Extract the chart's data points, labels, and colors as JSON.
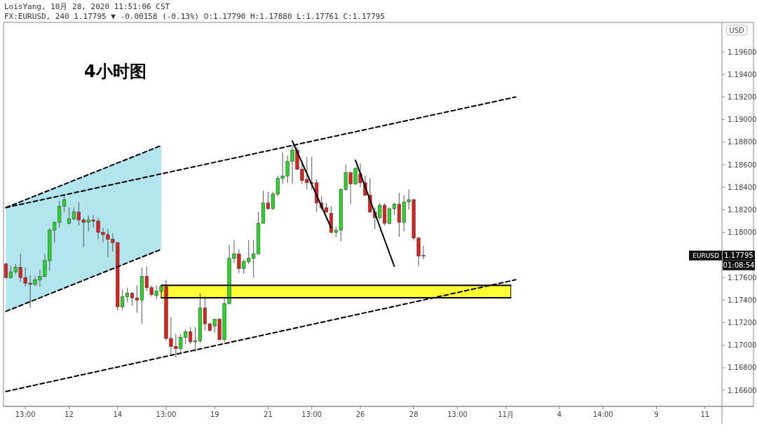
{
  "chart_data": {
    "type": "candlestick",
    "title": "LoisYang, 10月 28, 2020 11:51:06 CST",
    "subtitle": "FX:EURUSD, 240 1.17795 ▼ -0.00158 (-0.13%) O:1.17790 H:1.17880 L:1.17761 C:1.17795",
    "ylabel": "USD",
    "annotations": [
      "4小时图",
      "EURUSD",
      "1.17795",
      "01:08:54"
    ],
    "categories": [
      null,
      null,
      null,
      null,
      "13:00",
      null,
      null,
      null,
      null,
      null,
      null,
      null,
      null,
      "12",
      null,
      null,
      null,
      null,
      null,
      null,
      null,
      null,
      null,
      "14",
      null,
      null,
      null,
      null,
      null,
      null,
      null,
      null,
      null,
      "13:00",
      null,
      null,
      null,
      null,
      null,
      null,
      null,
      null,
      null,
      "19",
      null,
      null,
      null,
      null,
      null,
      null,
      null,
      null,
      null,
      null,
      "21",
      null,
      null,
      null,
      null,
      null,
      null,
      null,
      null,
      "13:00",
      null,
      null,
      null,
      null,
      null,
      null,
      null,
      null,
      null,
      "26",
      null,
      null,
      null,
      null,
      null,
      null,
      null,
      null,
      null,
      null,
      "28",
      null,
      null,
      null,
      null,
      null,
      null,
      null,
      null,
      "13:00",
      null,
      null,
      null,
      null,
      null,
      null,
      null,
      null,
      null,
      "11月",
      null,
      null,
      null,
      null,
      null,
      null,
      null,
      null,
      null,
      null,
      "4",
      null,
      null,
      null,
      null,
      null,
      null,
      null,
      null,
      "14:00",
      null,
      null,
      null,
      null,
      null,
      null,
      null,
      null,
      null,
      null,
      "9",
      null,
      null,
      null,
      null,
      null,
      null,
      null,
      null,
      null,
      "11",
      null,
      null,
      null
    ],
    "ohlc": [
      [
        1.1772,
        1.1773,
        1.1759,
        1.176
      ],
      [
        1.176,
        1.177,
        1.1759,
        1.1765
      ],
      [
        1.1765,
        1.1772,
        1.1763,
        1.1769
      ],
      [
        1.1769,
        1.1781,
        1.1756,
        1.176
      ],
      [
        1.176,
        1.1769,
        1.1752,
        1.1755
      ],
      [
        1.1755,
        1.1762,
        1.1733,
        1.1754
      ],
      [
        1.1754,
        1.1761,
        1.1752,
        1.1758
      ],
      [
        1.1758,
        1.1767,
        1.1752,
        1.1761
      ],
      [
        1.1761,
        1.1781,
        1.176,
        1.1775
      ],
      [
        1.1775,
        1.1804,
        1.1766,
        1.1802
      ],
      [
        1.1802,
        1.181,
        1.1791,
        1.1809
      ],
      [
        1.1809,
        1.1828,
        1.1804,
        1.1823
      ],
      [
        1.1823,
        1.1833,
        1.1818,
        1.1829
      ],
      [
        1.1808,
        1.1822,
        1.1807,
        1.1812
      ],
      [
        1.1812,
        1.1822,
        1.1811,
        1.1818
      ],
      [
        1.1818,
        1.1827,
        1.1806,
        1.1811
      ],
      [
        1.1811,
        1.1813,
        1.1787,
        1.1809
      ],
      [
        1.1809,
        1.1815,
        1.1801,
        1.1811
      ],
      [
        1.1811,
        1.1815,
        1.1804,
        1.181
      ],
      [
        1.181,
        1.1813,
        1.1794,
        1.18
      ],
      [
        1.18,
        1.1804,
        1.1791,
        1.1798
      ],
      [
        1.1798,
        1.1803,
        1.1778,
        1.1794
      ],
      [
        1.1794,
        1.1799,
        1.1783,
        1.1791
      ],
      [
        1.1791,
        1.1791,
        1.1731,
        1.1734
      ],
      [
        1.1734,
        1.1749,
        1.1731,
        1.1743
      ],
      [
        1.1743,
        1.1751,
        1.1738,
        1.1746
      ],
      [
        1.1746,
        1.1747,
        1.1735,
        1.1742
      ],
      [
        1.1742,
        1.1753,
        1.1729,
        1.174
      ],
      [
        1.174,
        1.1769,
        1.1719,
        1.1761
      ],
      [
        1.1761,
        1.177,
        1.1748,
        1.1751
      ],
      [
        1.1751,
        1.1753,
        1.1743,
        1.1745
      ],
      [
        1.1744,
        1.1753,
        1.1741,
        1.1748
      ],
      [
        1.1748,
        1.1753,
        1.1746,
        1.1752
      ],
      [
        1.1752,
        1.1758,
        1.1704,
        1.1706
      ],
      [
        1.1706,
        1.1725,
        1.1692,
        1.1699
      ],
      [
        1.1699,
        1.171,
        1.1689,
        1.1697
      ],
      [
        1.1697,
        1.171,
        1.1693,
        1.1707
      ],
      [
        1.1707,
        1.1714,
        1.1701,
        1.1712
      ],
      [
        1.1712,
        1.1716,
        1.1701,
        1.1703
      ],
      [
        1.1703,
        1.1716,
        1.1694,
        1.1704
      ],
      [
        1.1704,
        1.1746,
        1.1702,
        1.1733
      ],
      [
        1.1733,
        1.1743,
        1.1713,
        1.1719
      ],
      [
        1.1719,
        1.172,
        1.1712,
        1.1713
      ],
      [
        1.1717,
        1.1723,
        1.1711,
        1.1723
      ],
      [
        1.1723,
        1.1724,
        1.1704,
        1.1705
      ],
      [
        1.1705,
        1.1742,
        1.1703,
        1.1737
      ],
      [
        1.1737,
        1.1789,
        1.1736,
        1.1777
      ],
      [
        1.1777,
        1.1793,
        1.1773,
        1.1781
      ],
      [
        1.1781,
        1.1785,
        1.1764,
        1.1768
      ],
      [
        1.1768,
        1.1776,
        1.1763,
        1.1774
      ],
      [
        1.1774,
        1.1793,
        1.1772,
        1.1777
      ],
      [
        1.1777,
        1.1793,
        1.176,
        1.1781
      ],
      [
        1.1781,
        1.1818,
        1.1781,
        1.1808
      ],
      [
        1.1808,
        1.1837,
        1.1808,
        1.1826
      ],
      [
        1.1826,
        1.1836,
        1.182,
        1.1821
      ],
      [
        1.1821,
        1.1836,
        1.182,
        1.1834
      ],
      [
        1.1834,
        1.185,
        1.1832,
        1.1848
      ],
      [
        1.1848,
        1.1871,
        1.1843,
        1.185
      ],
      [
        1.185,
        1.1868,
        1.1844,
        1.1863
      ],
      [
        1.1863,
        1.1877,
        1.1843,
        1.1873
      ],
      [
        1.1873,
        1.1876,
        1.1855,
        1.1856
      ],
      [
        1.1856,
        1.1863,
        1.1843,
        1.1846
      ],
      [
        1.1847,
        1.1867,
        1.1838,
        1.1844
      ],
      [
        1.1844,
        1.1867,
        1.1838,
        1.1844
      ],
      [
        1.1844,
        1.1847,
        1.1818,
        1.1826
      ],
      [
        1.1826,
        1.1832,
        1.182,
        1.1822
      ],
      [
        1.1822,
        1.1826,
        1.1817,
        1.1818
      ],
      [
        1.1817,
        1.1823,
        1.1799,
        1.18
      ],
      [
        1.18,
        1.1805,
        1.1796,
        1.1802
      ],
      [
        1.1802,
        1.1839,
        1.1792,
        1.1838
      ],
      [
        1.1838,
        1.186,
        1.1837,
        1.1853
      ],
      [
        1.1853,
        1.1854,
        1.1825,
        1.1843
      ],
      [
        1.1843,
        1.1857,
        1.1842,
        1.1857
      ],
      [
        1.1852,
        1.1861,
        1.184,
        1.1844
      ],
      [
        1.1844,
        1.185,
        1.1832,
        1.1833
      ],
      [
        1.1833,
        1.1848,
        1.1817,
        1.1818
      ],
      [
        1.1818,
        1.1822,
        1.1803,
        1.1813
      ],
      [
        1.1813,
        1.1826,
        1.1811,
        1.1824
      ],
      [
        1.1824,
        1.1826,
        1.1806,
        1.1808
      ],
      [
        1.1808,
        1.1822,
        1.1807,
        1.1821
      ],
      [
        1.1821,
        1.1826,
        1.1815,
        1.1825
      ],
      [
        1.1825,
        1.1835,
        1.1796,
        1.1809
      ],
      [
        1.1809,
        1.1833,
        1.1801,
        1.1827
      ],
      [
        1.1827,
        1.1838,
        1.182,
        1.1829
      ],
      [
        1.1829,
        1.183,
        1.1793,
        1.1795
      ],
      [
        1.1795,
        1.1796,
        1.177,
        1.1779
      ],
      [
        1.1779,
        1.1788,
        1.17761,
        1.17795
      ],
      null,
      null,
      null,
      null,
      null,
      null,
      null,
      null,
      null,
      null,
      null,
      null,
      null,
      null,
      null,
      null,
      null,
      null,
      null,
      null,
      null,
      null,
      null,
      null,
      null,
      null,
      null,
      null,
      null,
      null,
      null,
      null,
      null,
      null,
      null,
      null,
      null,
      null,
      null,
      null,
      null,
      null,
      null,
      null,
      null,
      null,
      null,
      null,
      null,
      null,
      null,
      null,
      null,
      null,
      null,
      null,
      null,
      null,
      null,
      null,
      null
    ],
    "colors": [
      "#e0201c",
      "#26d926",
      "#26d926",
      "#e0201c",
      "#e0201c",
      "#e0201c",
      "#26d926",
      "#26d926",
      "#26d926",
      "#26d926",
      "#26d926",
      "#26d926",
      "#26d926",
      "#26d926",
      "#26d926",
      "#e0201c",
      "#e0201c",
      "#26d926",
      "#e0201c",
      "#e0201c",
      "#e0201c",
      "#e0201c",
      "#e0201c",
      "#e0201c",
      "#26d926",
      "#26d926",
      "#e0201c",
      "#e0201c",
      "#26d926",
      "#e0201c",
      "#e0201c",
      "#26d926",
      "#26d926",
      "#e0201c",
      "#e0201c",
      "#e0201c",
      "#26d926",
      "#26d926",
      "#e0201c",
      "#26d926",
      "#26d926",
      "#e0201c",
      "#e0201c",
      "#26d926",
      "#e0201c",
      "#26d926",
      "#26d926",
      "#26d926",
      "#e0201c",
      "#26d926",
      "#26d926",
      "#26d926",
      "#26d926",
      "#26d926",
      "#e0201c",
      "#26d926",
      "#26d926",
      "#26d926",
      "#26d926",
      "#26d926",
      "#e0201c",
      "#e0201c",
      "#e0201c",
      "#e0201c",
      "#e0201c",
      "#e0201c",
      "#e0201c",
      "#e0201c",
      "#26d926",
      "#26d926",
      "#26d926",
      "#e0201c",
      "#26d926",
      "#e0201c",
      "#e0201c",
      "#e0201c",
      "#e0201c",
      "#26d926",
      "#e0201c",
      "#26d926",
      "#26d926",
      "#e0201c",
      "#26d926",
      "#26d926",
      "#e0201c",
      "#e0201c",
      "#26d926",
      null,
      null,
      null,
      null,
      null,
      null,
      null,
      null,
      null,
      null,
      null,
      null,
      null,
      null,
      null,
      null,
      null,
      null,
      null,
      null,
      null,
      null,
      null,
      null,
      null,
      null,
      null,
      null,
      null,
      null,
      null,
      null,
      null,
      null,
      null,
      null,
      null,
      null,
      null,
      null,
      null,
      null,
      null,
      null,
      null,
      null,
      null,
      null,
      null,
      null,
      null,
      null,
      null,
      null,
      null,
      null,
      null,
      null,
      null,
      null,
      null
    ],
    "series": [
      {
        "type": "line",
        "color": "#000000",
        "line_style": "dashed",
        "values": [
          1.1822,
          null,
          null,
          null,
          null,
          null,
          null,
          null,
          null,
          null,
          null,
          null,
          null,
          null,
          null,
          null,
          null,
          null,
          null,
          null,
          null,
          null,
          null,
          null,
          null,
          null,
          null,
          null,
          null,
          null,
          null,
          null,
          1.1877,
          null,
          null,
          null,
          null,
          null,
          null,
          null,
          null,
          null,
          null,
          null,
          null,
          null,
          null,
          null,
          null,
          null,
          null,
          null,
          null,
          null,
          null,
          null,
          null,
          null,
          null,
          null,
          null,
          null,
          null,
          null,
          null,
          null,
          null,
          null,
          null,
          null,
          null,
          null,
          null,
          null,
          null,
          null,
          null,
          null,
          null,
          null,
          null,
          null,
          null,
          null,
          null,
          null,
          null,
          null,
          null,
          null,
          null,
          null,
          null,
          null,
          null,
          null,
          null,
          null,
          null,
          null,
          null,
          null,
          null,
          null,
          null,
          null,
          null,
          null,
          null,
          null,
          null,
          null,
          null,
          null,
          null,
          null,
          null,
          null,
          null,
          null,
          null,
          null,
          null,
          null,
          null,
          null,
          null,
          null,
          null,
          null,
          null,
          null,
          null,
          null,
          null,
          null,
          null,
          null,
          null,
          null,
          null,
          null,
          null,
          null,
          null,
          null,
          null,
          null
        ]
      },
      {
        "type": "line",
        "color": "#000000",
        "line_style": "dashed",
        "values": [
          1.173,
          null,
          null,
          null,
          null,
          null,
          null,
          null,
          null,
          null,
          null,
          null,
          null,
          null,
          null,
          null,
          null,
          null,
          null,
          null,
          null,
          null,
          null,
          null,
          null,
          null,
          null,
          null,
          null,
          null,
          null,
          null,
          1.1785,
          null,
          null,
          null,
          null,
          null,
          null,
          null,
          null,
          null,
          null,
          null,
          null,
          null,
          null,
          null,
          null,
          null,
          null,
          null,
          null,
          null,
          null,
          null,
          null,
          null,
          null,
          null,
          null,
          null,
          null,
          null,
          null,
          null,
          null,
          null,
          null,
          null,
          null,
          null,
          null,
          null,
          null,
          null,
          null,
          null,
          null,
          null,
          null,
          null,
          null,
          null,
          null,
          null,
          null,
          null,
          null,
          null,
          null,
          null,
          null,
          null,
          null,
          null,
          null,
          null,
          null,
          null,
          null,
          null,
          null,
          null,
          null,
          null,
          null,
          null,
          null,
          null,
          null,
          null,
          null,
          null,
          null,
          null,
          null,
          null,
          null,
          null,
          null,
          null,
          null,
          null,
          null,
          null,
          null,
          null,
          null,
          null,
          null,
          null,
          null,
          null,
          null,
          null,
          null,
          null,
          null,
          null,
          null,
          null,
          null,
          null,
          null,
          null,
          null,
          null
        ]
      },
      {
        "type": "line",
        "color": "#000000",
        "line_style": "dashed",
        "values": [
          1.1822,
          null,
          null,
          null,
          null,
          null,
          null,
          null,
          null,
          null,
          null,
          null,
          null,
          null,
          null,
          null,
          null,
          null,
          null,
          null,
          null,
          null,
          null,
          null,
          null,
          null,
          null,
          null,
          null,
          null,
          null,
          null,
          null,
          null,
          null,
          null,
          null,
          null,
          null,
          null,
          null,
          null,
          null,
          null,
          null,
          null,
          null,
          null,
          null,
          null,
          null,
          null,
          null,
          null,
          null,
          null,
          null,
          null,
          null,
          null,
          null,
          null,
          null,
          null,
          null,
          null,
          null,
          null,
          null,
          null,
          null,
          null,
          null,
          null,
          null,
          null,
          null,
          null,
          null,
          null,
          null,
          null,
          null,
          null,
          null,
          null,
          null,
          null,
          null,
          null,
          null,
          null,
          null,
          null,
          null,
          null,
          null,
          null,
          null,
          null,
          null,
          null,
          null,
          null,
          null,
          1.192,
          null,
          null,
          null,
          null,
          null,
          null,
          null,
          null,
          null,
          null,
          null,
          null,
          null,
          null,
          null,
          null,
          null,
          null,
          null,
          null,
          null,
          null,
          null,
          null,
          null,
          null,
          null,
          null,
          null,
          null,
          null,
          null,
          null,
          null,
          null,
          null,
          null,
          null,
          null,
          null,
          null,
          null
        ]
      },
      {
        "type": "line",
        "color": "#000000",
        "line_style": "dashed",
        "values": [
          1.1659,
          null,
          null,
          null,
          null,
          null,
          null,
          null,
          null,
          null,
          null,
          null,
          null,
          null,
          null,
          null,
          null,
          null,
          null,
          null,
          null,
          null,
          null,
          null,
          null,
          null,
          null,
          null,
          null,
          null,
          null,
          null,
          null,
          null,
          null,
          null,
          null,
          null,
          null,
          null,
          null,
          null,
          null,
          null,
          null,
          null,
          null,
          null,
          null,
          null,
          null,
          null,
          null,
          null,
          null,
          null,
          null,
          null,
          null,
          null,
          null,
          null,
          null,
          null,
          null,
          null,
          null,
          null,
          null,
          null,
          null,
          null,
          null,
          null,
          null,
          null,
          null,
          null,
          null,
          null,
          null,
          null,
          null,
          null,
          null,
          null,
          null,
          null,
          null,
          null,
          null,
          null,
          null,
          null,
          null,
          null,
          null,
          null,
          null,
          null,
          null,
          null,
          null,
          null,
          null,
          1.1758,
          null,
          null,
          null,
          null,
          null,
          null,
          null,
          null,
          null,
          null,
          null,
          null,
          null,
          null,
          null,
          null,
          null,
          null,
          null,
          null,
          null,
          null,
          null,
          null,
          null,
          null,
          null,
          null,
          null,
          null,
          null,
          null,
          null,
          null,
          null,
          null,
          null,
          null,
          null,
          null,
          null,
          null
        ]
      },
      {
        "type": "line",
        "color": "#000000",
        "line_style": "solid",
        "values": [
          null,
          null,
          null,
          null,
          null,
          null,
          null,
          null,
          null,
          null,
          null,
          null,
          null,
          null,
          null,
          null,
          null,
          null,
          null,
          null,
          null,
          null,
          null,
          null,
          null,
          null,
          null,
          null,
          null,
          null,
          null,
          null,
          null,
          null,
          null,
          null,
          null,
          null,
          null,
          null,
          null,
          null,
          null,
          null,
          null,
          null,
          null,
          null,
          null,
          null,
          null,
          null,
          null,
          null,
          null,
          null,
          null,
          null,
          null,
          1.1881,
          null,
          null,
          null,
          null,
          null,
          null,
          null,
          1.1804,
          null,
          null,
          null,
          null,
          null,
          null,
          null,
          null,
          null,
          null,
          null,
          null,
          null,
          null,
          null,
          null,
          null,
          null,
          null,
          null,
          null,
          null,
          null,
          null,
          null,
          null,
          null,
          null,
          null,
          null,
          null,
          null,
          null,
          null,
          null,
          null,
          null,
          null,
          null,
          null,
          null,
          null,
          null,
          null,
          null,
          null,
          null,
          null,
          null,
          null,
          null,
          null,
          null,
          null,
          null,
          null,
          null,
          null,
          null,
          null,
          null,
          null,
          null,
          null,
          null,
          null,
          null,
          null,
          null,
          null,
          null,
          null,
          null,
          null,
          null,
          null,
          null,
          null,
          null,
          null
        ]
      },
      {
        "type": "line",
        "color": "#000000",
        "line_style": "solid",
        "values": [
          null,
          null,
          null,
          null,
          null,
          null,
          null,
          null,
          null,
          null,
          null,
          null,
          null,
          null,
          null,
          null,
          null,
          null,
          null,
          null,
          null,
          null,
          null,
          null,
          null,
          null,
          null,
          null,
          null,
          null,
          null,
          null,
          null,
          null,
          null,
          null,
          null,
          null,
          null,
          null,
          null,
          null,
          null,
          null,
          null,
          null,
          null,
          null,
          null,
          null,
          null,
          null,
          null,
          null,
          null,
          null,
          null,
          null,
          null,
          null,
          null,
          null,
          null,
          null,
          null,
          null,
          null,
          null,
          null,
          null,
          null,
          null,
          1.1864,
          null,
          null,
          null,
          null,
          null,
          null,
          null,
          1.177,
          null,
          null,
          null,
          null,
          null,
          null,
          null,
          null,
          null,
          null,
          null,
          null,
          null,
          null,
          null,
          null,
          null,
          null,
          null,
          null,
          null,
          null,
          null,
          null,
          null,
          null,
          null,
          null,
          null,
          null,
          null,
          null,
          null,
          null,
          null,
          null,
          null,
          null,
          null,
          null,
          null,
          null,
          null,
          null,
          null,
          null,
          null,
          null,
          null,
          null,
          null,
          null,
          null,
          null,
          null,
          null,
          null,
          null,
          null,
          null,
          null,
          null,
          null,
          null,
          null,
          null,
          null
        ]
      },
      {
        "type": "line",
        "color": "#000000",
        "line_style": "solid",
        "values": [
          null,
          null,
          null,
          null,
          null,
          null,
          null,
          null,
          null,
          null,
          null,
          null,
          null,
          null,
          null,
          null,
          null,
          null,
          null,
          null,
          null,
          null,
          null,
          null,
          null,
          null,
          null,
          null,
          null,
          null,
          null,
          null,
          1.1753,
          null,
          null,
          null,
          null,
          null,
          null,
          null,
          null,
          null,
          null,
          null,
          null,
          null,
          null,
          null,
          null,
          null,
          null,
          null,
          null,
          null,
          null,
          null,
          null,
          null,
          null,
          null,
          null,
          null,
          null,
          null,
          null,
          null,
          null,
          null,
          null,
          null,
          null,
          null,
          null,
          null,
          null,
          null,
          null,
          null,
          null,
          null,
          null,
          null,
          null,
          null,
          null,
          null,
          null,
          null,
          null,
          null,
          null,
          null,
          null,
          null,
          null,
          null,
          null,
          null,
          null,
          null,
          null,
          null,
          null,
          null,
          1.1753,
          null,
          null,
          null,
          null,
          null,
          null,
          null,
          null,
          null,
          null,
          null,
          null,
          null,
          null,
          null,
          null,
          null,
          null,
          null,
          null,
          null,
          null,
          null,
          null,
          null,
          null,
          null,
          null,
          null,
          null,
          null,
          null,
          null,
          null,
          null,
          null,
          null,
          null,
          null,
          null,
          null,
          null,
          null
        ]
      },
      {
        "type": "line",
        "color": "#000000",
        "line_style": "solid",
        "values": [
          null,
          null,
          null,
          null,
          null,
          null,
          null,
          null,
          null,
          null,
          null,
          null,
          null,
          null,
          null,
          null,
          null,
          null,
          null,
          null,
          null,
          null,
          null,
          null,
          null,
          null,
          null,
          null,
          null,
          null,
          null,
          null,
          1.1742,
          null,
          null,
          null,
          null,
          null,
          null,
          null,
          null,
          null,
          null,
          null,
          null,
          null,
          null,
          null,
          null,
          null,
          null,
          null,
          null,
          null,
          null,
          null,
          null,
          null,
          null,
          null,
          null,
          null,
          null,
          null,
          null,
          null,
          null,
          null,
          null,
          null,
          null,
          null,
          null,
          null,
          null,
          null,
          null,
          null,
          null,
          null,
          null,
          null,
          null,
          null,
          null,
          null,
          null,
          null,
          null,
          null,
          null,
          null,
          null,
          null,
          null,
          null,
          null,
          null,
          null,
          null,
          null,
          null,
          null,
          null,
          1.1742,
          null,
          null,
          null,
          null,
          null,
          null,
          null,
          null,
          null,
          null,
          null,
          null,
          null,
          null,
          null,
          null,
          null,
          null,
          null,
          null,
          null,
          null,
          null,
          null,
          null,
          null,
          null,
          null,
          null,
          null,
          null,
          null,
          null,
          null,
          null,
          null,
          null,
          null,
          null,
          null,
          null,
          null,
          null
        ]
      }
    ],
    "ylim": [
      1.16458,
      1.19861
    ],
    "yticks": [
      {
        "value": 1.166,
        "label": "1.16600"
      },
      {
        "value": 1.168,
        "label": "1.16800"
      },
      {
        "value": 1.17,
        "label": "1.17000"
      },
      {
        "value": 1.172,
        "label": "1.17200"
      },
      {
        "value": 1.174,
        "label": "1.17400"
      },
      {
        "value": 1.176,
        "label": "1.17600"
      },
      {
        "value": 1.178,
        "label": null
      },
      {
        "value": 1.18,
        "label": "1.18000"
      },
      {
        "value": 1.182,
        "label": "1.18200"
      },
      {
        "value": 1.184,
        "label": "1.18400"
      },
      {
        "value": 1.186,
        "label": "1.18600"
      },
      {
        "value": 1.188,
        "label": "1.18800"
      },
      {
        "value": 1.19,
        "label": "1.19000"
      },
      {
        "value": 1.192,
        "label": "1.19200"
      },
      {
        "value": 1.194,
        "label": "1.19400"
      },
      {
        "value": 1.196,
        "label": "1.19600"
      }
    ]
  }
}
